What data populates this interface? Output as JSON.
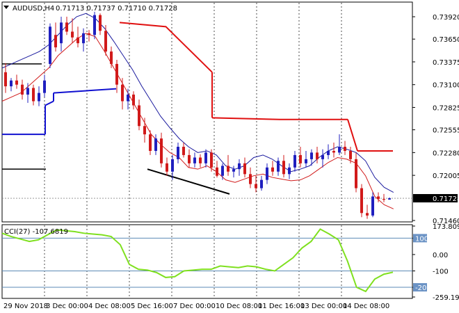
{
  "header": {
    "symbol_tf": "AUDUSD,H4",
    "ohlc": "0.71713 0.71737 0.71710 0.71728",
    "menu_icon": "triangle-down-icon"
  },
  "cci_label": "CCI(27) -107.6819",
  "current_price": "0.71728",
  "colors": {
    "bull": "#1f1fbf",
    "bear": "#d11a1a",
    "env_upper": "#1a1a9e",
    "env_lower": "#d11a1a",
    "stop_red": "#e01010",
    "stop_blue": "#1010d0",
    "cci": "#7fe01f",
    "level_line": "#5b8ab5",
    "tag_fill": "#6b93c5"
  },
  "chart_data": [
    {
      "type": "candlestick",
      "title": "",
      "price_axis": {
        "range": [
          0.7146,
          0.7408
        ],
        "ticks": [
          "0.73920",
          "0.73650",
          "0.73375",
          "0.73100",
          "0.72825",
          "0.72555",
          "0.72280",
          "0.72005",
          "0.71728",
          "0.71460"
        ]
      },
      "time_axis": [
        "29 Nov 2018",
        "3 Dec 00:00",
        "4 Dec 08:00",
        "5 Dec 16:00",
        "7 Dec 00:00",
        "10 Dec 08:00",
        "11 Dec 16:00",
        "13 Dec 00:00",
        "14 Dec 08:00"
      ],
      "candles": [
        [
          0.7325,
          0.7336,
          0.73,
          0.7308
        ],
        [
          0.7308,
          0.7318,
          0.7302,
          0.7315
        ],
        [
          0.7315,
          0.7322,
          0.7305,
          0.731
        ],
        [
          0.731,
          0.7316,
          0.7292,
          0.7298
        ],
        [
          0.7298,
          0.7312,
          0.7288,
          0.7306
        ],
        [
          0.7306,
          0.731,
          0.7285,
          0.729
        ],
        [
          0.729,
          0.7308,
          0.7284,
          0.73
        ],
        [
          0.73,
          0.7322,
          0.7295,
          0.7315
        ],
        [
          0.7335,
          0.7384,
          0.733,
          0.738
        ],
        [
          0.737,
          0.7385,
          0.735,
          0.7355
        ],
        [
          0.736,
          0.7392,
          0.735,
          0.7385
        ],
        [
          0.7385,
          0.7392,
          0.737,
          0.7374
        ],
        [
          0.7374,
          0.739,
          0.736,
          0.7367
        ],
        [
          0.7367,
          0.738,
          0.7355,
          0.736
        ],
        [
          0.736,
          0.7378,
          0.735,
          0.7372
        ],
        [
          0.7372,
          0.7376,
          0.7362,
          0.737
        ],
        [
          0.737,
          0.7398,
          0.7365,
          0.7394
        ],
        [
          0.7394,
          0.7396,
          0.737,
          0.7375
        ],
        [
          0.7375,
          0.7382,
          0.7345,
          0.735
        ],
        [
          0.735,
          0.7356,
          0.733,
          0.7335
        ],
        [
          0.7335,
          0.734,
          0.73,
          0.731
        ],
        [
          0.731,
          0.7318,
          0.728,
          0.729
        ],
        [
          0.729,
          0.7305,
          0.728,
          0.7298
        ],
        [
          0.7298,
          0.7302,
          0.728,
          0.7285
        ],
        [
          0.7285,
          0.7292,
          0.7255,
          0.726
        ],
        [
          0.726,
          0.727,
          0.724,
          0.725
        ],
        [
          0.725,
          0.7255,
          0.7225,
          0.723
        ],
        [
          0.723,
          0.725,
          0.7225,
          0.7245
        ],
        [
          0.7245,
          0.7252,
          0.721,
          0.7215
        ],
        [
          0.7215,
          0.7222,
          0.72,
          0.7205
        ],
        [
          0.7205,
          0.7225,
          0.7195,
          0.722
        ],
        [
          0.722,
          0.724,
          0.7215,
          0.7235
        ],
        [
          0.7235,
          0.724,
          0.7222,
          0.7225
        ],
        [
          0.7225,
          0.7232,
          0.721,
          0.7215
        ],
        [
          0.7215,
          0.7228,
          0.721,
          0.7222
        ],
        [
          0.7222,
          0.7226,
          0.721,
          0.7215
        ],
        [
          0.7215,
          0.7232,
          0.721,
          0.7228
        ],
        [
          0.7228,
          0.7232,
          0.7205,
          0.721
        ],
        [
          0.721,
          0.7218,
          0.7198,
          0.72
        ],
        [
          0.72,
          0.7215,
          0.7195,
          0.7212
        ],
        [
          0.7212,
          0.7225,
          0.72,
          0.7205
        ],
        [
          0.7205,
          0.7212,
          0.7198,
          0.7208
        ],
        [
          0.7208,
          0.722,
          0.72,
          0.7215
        ],
        [
          0.7215,
          0.7222,
          0.7198,
          0.7202
        ],
        [
          0.7202,
          0.721,
          0.7185,
          0.719
        ],
        [
          0.719,
          0.72,
          0.718,
          0.7185
        ],
        [
          0.7185,
          0.72,
          0.7182,
          0.7195
        ],
        [
          0.7195,
          0.7215,
          0.719,
          0.721
        ],
        [
          0.721,
          0.7218,
          0.72,
          0.7205
        ],
        [
          0.7205,
          0.7222,
          0.72,
          0.7218
        ],
        [
          0.7218,
          0.7225,
          0.7198,
          0.7202
        ],
        [
          0.7202,
          0.7215,
          0.7196,
          0.721
        ],
        [
          0.721,
          0.723,
          0.7205,
          0.7225
        ],
        [
          0.7225,
          0.7235,
          0.721,
          0.7215
        ],
        [
          0.7215,
          0.723,
          0.721,
          0.722
        ],
        [
          0.722,
          0.7232,
          0.7212,
          0.7228
        ],
        [
          0.7228,
          0.7235,
          0.7215,
          0.722
        ],
        [
          0.722,
          0.7232,
          0.721,
          0.7225
        ],
        [
          0.7225,
          0.7238,
          0.722,
          0.723
        ],
        [
          0.723,
          0.724,
          0.7222,
          0.7228
        ],
        [
          0.7228,
          0.725,
          0.7225,
          0.7235
        ],
        [
          0.7235,
          0.7242,
          0.7225,
          0.723
        ],
        [
          0.723,
          0.7235,
          0.7215,
          0.722
        ],
        [
          0.722,
          0.7228,
          0.718,
          0.7185
        ],
        [
          0.7185,
          0.719,
          0.715,
          0.7155
        ],
        [
          0.7155,
          0.7165,
          0.7148,
          0.7152
        ],
        [
          0.7152,
          0.718,
          0.715,
          0.7175
        ],
        [
          0.7175,
          0.718,
          0.7168,
          0.7172
        ],
        [
          0.7172,
          0.7178,
          0.7168,
          0.7171
        ],
        [
          0.71713,
          0.71737,
          0.7171,
          0.71728
        ]
      ],
      "envelope_upper": [
        0.733,
        0.7335,
        0.734,
        0.7345,
        0.735,
        0.7358,
        0.737,
        0.7382,
        0.7392,
        0.7396,
        0.739,
        0.7378,
        0.7362,
        0.7345,
        0.7328,
        0.7308,
        0.729,
        0.7272,
        0.7258,
        0.7245,
        0.7235,
        0.7228,
        0.723,
        0.7225,
        0.7212,
        0.7208,
        0.7212,
        0.7222,
        0.7225,
        0.722,
        0.7212,
        0.7205,
        0.7208,
        0.7212,
        0.7222,
        0.723,
        0.7235,
        0.7232,
        0.7228,
        0.7218,
        0.7198,
        0.7186,
        0.718
      ],
      "envelope_lower": [
        0.729,
        0.7295,
        0.73,
        0.731,
        0.732,
        0.733,
        0.7345,
        0.7355,
        0.7365,
        0.7372,
        0.7368,
        0.735,
        0.733,
        0.731,
        0.729,
        0.727,
        0.725,
        0.7238,
        0.7228,
        0.7222,
        0.721,
        0.7208,
        0.7212,
        0.7205,
        0.7195,
        0.7192,
        0.7196,
        0.72,
        0.7202,
        0.7198,
        0.7196,
        0.7194,
        0.7195,
        0.72,
        0.7208,
        0.7216,
        0.7222,
        0.722,
        0.7215,
        0.72,
        0.7175,
        0.7165,
        0.716
      ],
      "stop_levels": {
        "blue_steps": [
          [
            0.725,
            0.725
          ],
          [
            0.7285,
            0.729
          ],
          [
            0.73,
            0.7305
          ]
        ],
        "red_steps": [
          [
            0.7385,
            0.738,
            0.7325
          ],
          [
            0.727,
            0.7268,
            0.7268
          ],
          [
            0.723,
            0.723
          ]
        ]
      },
      "trendline": [
        0.7208,
        0.7178
      ],
      "black_levels": [
        0.7335,
        0.7208
      ]
    },
    {
      "type": "line",
      "title": "CCI(27) -107.6819",
      "axis": {
        "range": [
          -259.196,
          173.8092
        ],
        "ticks": [
          "173.8092",
          "100",
          "0.00",
          "-100",
          "-200",
          "-259.196"
        ]
      },
      "levels": [
        100,
        -100,
        -200
      ],
      "values": [
        130,
        110,
        95,
        80,
        90,
        120,
        150,
        145,
        140,
        130,
        125,
        120,
        110,
        60,
        -60,
        -90,
        -95,
        -110,
        -140,
        -135,
        -100,
        -95,
        -90,
        -90,
        -70,
        -75,
        -80,
        -70,
        -75,
        -90,
        -100,
        -60,
        -20,
        40,
        80,
        155,
        125,
        90,
        -40,
        -200,
        -225,
        -150,
        -120,
        -108
      ]
    }
  ]
}
